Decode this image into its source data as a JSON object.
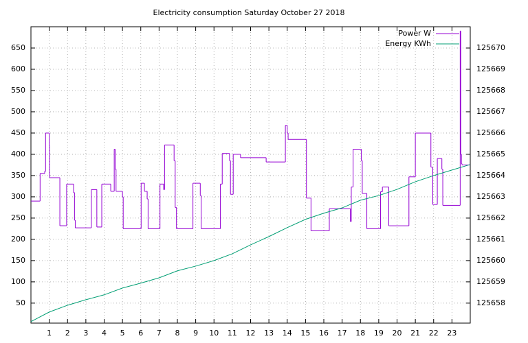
{
  "chart_data": {
    "type": "line",
    "title": "Electricity consumption Saturday October 27 2018",
    "xlim": [
      0,
      24
    ],
    "xticks": [
      1,
      2,
      3,
      4,
      5,
      6,
      7,
      8,
      9,
      10,
      11,
      12,
      13,
      14,
      15,
      16,
      17,
      18,
      19,
      20,
      21,
      22,
      23
    ],
    "ylim": [
      3,
      700
    ],
    "yticks": [
      50,
      100,
      150,
      200,
      250,
      300,
      350,
      400,
      450,
      500,
      550,
      600,
      650
    ],
    "y2lim": [
      125657.06,
      125671
    ],
    "y2ticks": [
      125658,
      125659,
      125660,
      125661,
      125662,
      125663,
      125664,
      125665,
      125666,
      125667,
      125668,
      125669,
      125670
    ],
    "grid": true,
    "legend": "top-right",
    "series": [
      {
        "name": "Power W",
        "color": "#9400d3",
        "step": true,
        "x": [
          0,
          0.5,
          0.75,
          0.8,
          1.0,
          1.02,
          1.58,
          1.95,
          2.33,
          2.38,
          2.42,
          3.3,
          3.6,
          3.87,
          4.36,
          4.55,
          4.6,
          4.65,
          5.0,
          5.04,
          6.02,
          6.2,
          6.35,
          6.4,
          7.05,
          7.25,
          7.3,
          7.82,
          7.88,
          7.95,
          8.85,
          9.25,
          9.3,
          10.35,
          10.45,
          10.5,
          10.85,
          10.9,
          11.05,
          11.1,
          11.45,
          12.85,
          13.9,
          14.0,
          14.05,
          15.05,
          15.3,
          16.3,
          17.45,
          17.5,
          17.6,
          18.05,
          18.1,
          18.3,
          18.35,
          19.1,
          19.2,
          19.55,
          19.6,
          20.65,
          21.0,
          21.85,
          21.95,
          22.2,
          22.45,
          22.5,
          23.45,
          23.48,
          23.52,
          23.55
        ],
        "values": [
          290,
          355,
          360,
          450,
          420,
          345,
          232,
          330,
          310,
          245,
          227,
          317,
          229,
          330,
          313,
          412,
          365,
          313,
          300,
          225,
          332,
          313,
          295,
          225,
          330,
          317,
          422,
          385,
          275,
          225,
          332,
          303,
          225,
          330,
          402,
          402,
          385,
          306,
          400,
          400,
          392,
          382,
          468,
          450,
          435,
          297,
          220,
          272,
          242,
          323,
          412,
          385,
          308,
          308,
          225,
          312,
          323,
          232,
          232,
          347,
          450,
          370,
          282,
          390,
          365,
          280,
          690,
          400,
          378,
          375
        ]
      },
      {
        "name": "Energy KWh",
        "color": "#009e73",
        "axis": "y2",
        "x": [
          0,
          1,
          2,
          3,
          4,
          5,
          6,
          7,
          8,
          9,
          10,
          11,
          12,
          13,
          14,
          15,
          16,
          17,
          18,
          19,
          20,
          21,
          22,
          23,
          24
        ],
        "values": [
          125657.13,
          125657.58,
          125657.9,
          125658.16,
          125658.39,
          125658.71,
          125658.94,
          125659.19,
          125659.52,
          125659.74,
          125660.0,
          125660.32,
          125660.74,
          125661.13,
          125661.55,
          125661.94,
          125662.23,
          125662.48,
          125662.84,
          125663.06,
          125663.35,
          125663.71,
          125664.0,
          125664.26,
          125664.52
        ]
      }
    ]
  }
}
